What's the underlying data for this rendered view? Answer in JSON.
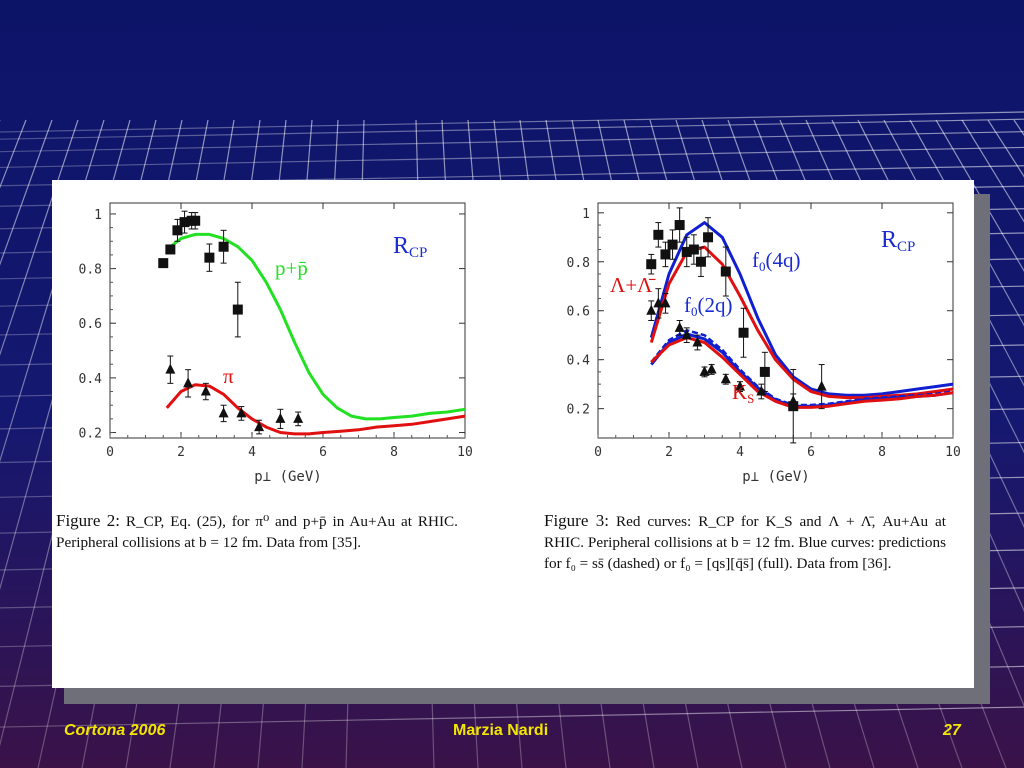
{
  "footer": {
    "left": "Cortona 2006",
    "center": "Marzia Nardi",
    "right": "27"
  },
  "colors": {
    "green_curve": "#22e022",
    "red_curve": "#e01010",
    "blue_curve": "#1020d0",
    "footer_text": "#f2e600",
    "label_blue": "#1a2bd0"
  },
  "chart_data": [
    {
      "type": "line",
      "title": "R",
      "title_sub": "CP",
      "xlabel": "p⊥ (GeV)",
      "xlim": [
        0,
        10
      ],
      "ylim": [
        0.18,
        1.04
      ],
      "xticks": [
        "0",
        "2",
        "4",
        "6",
        "8",
        "10"
      ],
      "yticks": [
        "0.2",
        "0.4",
        "0.6",
        "0.8",
        "1"
      ],
      "series": [
        {
          "name": "p+p̄",
          "style": "solid",
          "color": "#22e022",
          "x": [
            1.6,
            2.0,
            2.4,
            2.8,
            3.2,
            3.6,
            4.0,
            4.4,
            4.8,
            5.2,
            5.6,
            6.0,
            6.4,
            6.8,
            7.2,
            7.6,
            8.0,
            8.5,
            9.0,
            9.5,
            10.0
          ],
          "y": [
            0.87,
            0.91,
            0.925,
            0.925,
            0.91,
            0.88,
            0.83,
            0.75,
            0.65,
            0.53,
            0.42,
            0.34,
            0.29,
            0.26,
            0.25,
            0.25,
            0.255,
            0.26,
            0.27,
            0.275,
            0.285
          ]
        },
        {
          "name": "π",
          "style": "solid",
          "color": "#e01010",
          "x": [
            1.6,
            2.0,
            2.4,
            2.8,
            3.2,
            3.6,
            4.0,
            4.4,
            4.8,
            5.2,
            5.6,
            6.0,
            6.5,
            7.0,
            7.5,
            8.0,
            8.5,
            9.0,
            9.5,
            10.0
          ],
          "y": [
            0.29,
            0.35,
            0.375,
            0.37,
            0.34,
            0.29,
            0.25,
            0.22,
            0.2,
            0.195,
            0.195,
            0.2,
            0.205,
            0.21,
            0.22,
            0.225,
            0.23,
            0.24,
            0.25,
            0.26
          ]
        }
      ],
      "data_points": [
        {
          "marker": "square",
          "points": [
            [
              1.5,
              0.82
            ],
            [
              1.7,
              0.87
            ],
            [
              1.9,
              0.94
            ],
            [
              2.1,
              0.97
            ],
            [
              2.3,
              0.975
            ],
            [
              2.4,
              0.975
            ],
            [
              2.8,
              0.84
            ],
            [
              3.2,
              0.88
            ],
            [
              3.6,
              0.65
            ]
          ],
          "errors": [
            0.015,
            0.015,
            0.04,
            0.04,
            0.03,
            0.03,
            0.05,
            0.06,
            0.1
          ]
        },
        {
          "marker": "triangle",
          "points": [
            [
              1.7,
              0.43
            ],
            [
              2.2,
              0.38
            ],
            [
              2.7,
              0.35
            ],
            [
              3.2,
              0.27
            ],
            [
              3.7,
              0.27
            ],
            [
              4.2,
              0.22
            ],
            [
              4.8,
              0.25
            ],
            [
              5.3,
              0.25
            ]
          ],
          "errors": [
            0.05,
            0.05,
            0.03,
            0.03,
            0.025,
            0.025,
            0.035,
            0.025
          ]
        }
      ],
      "annotations": [
        "p+p̄",
        "π"
      ]
    },
    {
      "type": "line",
      "title": "R",
      "title_sub": "CP",
      "xlabel": "p⊥ (GeV)",
      "xlim": [
        0,
        10
      ],
      "ylim": [
        0.08,
        1.04
      ],
      "xticks": [
        "0",
        "2",
        "4",
        "6",
        "8",
        "10"
      ],
      "yticks": [
        "0.2",
        "0.4",
        "0.6",
        "0.8",
        "1"
      ],
      "series": [
        {
          "name": "f0(4q)",
          "style": "solid",
          "color": "#1020d0",
          "x": [
            1.5,
            2.0,
            2.5,
            3.0,
            3.5,
            4.0,
            4.5,
            5.0,
            5.5,
            6.0,
            6.5,
            7.0,
            7.5,
            8.0,
            8.5,
            9.0,
            9.5,
            10.0
          ],
          "y": [
            0.49,
            0.75,
            0.91,
            0.96,
            0.9,
            0.75,
            0.57,
            0.42,
            0.33,
            0.28,
            0.26,
            0.255,
            0.255,
            0.26,
            0.27,
            0.28,
            0.29,
            0.3
          ]
        },
        {
          "name": "Λ+Λ̄",
          "style": "solid",
          "color": "#e01010",
          "x": [
            1.5,
            2.0,
            2.5,
            3.0,
            3.5,
            4.0,
            4.5,
            5.0,
            5.5,
            6.0,
            6.5,
            7.0,
            7.5,
            8.0,
            8.5,
            9.0,
            9.5,
            10.0
          ],
          "y": [
            0.47,
            0.71,
            0.84,
            0.86,
            0.79,
            0.66,
            0.52,
            0.4,
            0.32,
            0.27,
            0.25,
            0.245,
            0.245,
            0.25,
            0.255,
            0.26,
            0.27,
            0.28
          ]
        },
        {
          "name": "f0(2q)",
          "style": "dashed",
          "color": "#1020d0",
          "x": [
            1.5,
            2.0,
            2.5,
            3.0,
            3.5,
            4.0,
            4.5,
            5.0,
            5.5,
            6.0,
            6.5,
            7.0,
            7.5,
            8.0,
            8.5,
            9.0,
            9.5,
            10.0
          ],
          "y": [
            0.39,
            0.48,
            0.52,
            0.5,
            0.44,
            0.36,
            0.29,
            0.24,
            0.215,
            0.215,
            0.22,
            0.23,
            0.24,
            0.245,
            0.25,
            0.255,
            0.26,
            0.27
          ]
        },
        {
          "name": "f0(2q)-full",
          "style": "solid",
          "color": "#1020d0",
          "x": [
            1.5,
            2.0,
            2.5,
            3.0,
            3.5,
            4.0,
            4.5,
            5.0,
            5.5,
            6.0,
            6.5,
            7.0,
            7.5,
            8.0,
            8.5,
            9.0,
            9.5,
            10.0
          ],
          "y": [
            0.38,
            0.47,
            0.505,
            0.485,
            0.43,
            0.35,
            0.285,
            0.235,
            0.21,
            0.21,
            0.215,
            0.225,
            0.235,
            0.24,
            0.245,
            0.25,
            0.255,
            0.265
          ]
        },
        {
          "name": "K_S",
          "style": "solid",
          "color": "#e01010",
          "x": [
            1.5,
            2.0,
            2.5,
            3.0,
            3.5,
            4.0,
            4.5,
            5.0,
            5.5,
            6.0,
            6.5,
            7.0,
            7.5,
            8.0,
            8.5,
            9.0,
            9.5,
            10.0
          ],
          "y": [
            0.39,
            0.46,
            0.49,
            0.47,
            0.41,
            0.34,
            0.27,
            0.23,
            0.205,
            0.205,
            0.21,
            0.22,
            0.23,
            0.235,
            0.24,
            0.25,
            0.255,
            0.265
          ]
        }
      ],
      "data_points": [
        {
          "marker": "square",
          "points": [
            [
              1.5,
              0.79
            ],
            [
              1.7,
              0.91
            ],
            [
              1.9,
              0.83
            ],
            [
              2.1,
              0.87
            ],
            [
              2.3,
              0.95
            ],
            [
              2.5,
              0.84
            ],
            [
              2.7,
              0.85
            ],
            [
              2.9,
              0.8
            ],
            [
              3.1,
              0.9
            ],
            [
              3.6,
              0.76
            ],
            [
              4.1,
              0.51
            ],
            [
              4.7,
              0.35
            ],
            [
              5.5,
              0.21
            ]
          ],
          "errors": [
            0.04,
            0.05,
            0.05,
            0.06,
            0.07,
            0.06,
            0.06,
            0.06,
            0.08,
            0.1,
            0.1,
            0.08,
            0.15
          ]
        },
        {
          "marker": "triangle",
          "points": [
            [
              1.5,
              0.6
            ],
            [
              1.7,
              0.63
            ],
            [
              1.9,
              0.63
            ],
            [
              2.3,
              0.53
            ],
            [
              2.5,
              0.5
            ],
            [
              2.8,
              0.47
            ],
            [
              3.0,
              0.35
            ],
            [
              3.2,
              0.36
            ],
            [
              3.6,
              0.32
            ],
            [
              4.0,
              0.29
            ],
            [
              4.6,
              0.27
            ],
            [
              5.5,
              0.23
            ],
            [
              6.3,
              0.29
            ]
          ],
          "errors": [
            0.04,
            0.06,
            0.04,
            0.03,
            0.03,
            0.03,
            0.02,
            0.02,
            0.02,
            0.02,
            0.03,
            0.03,
            0.09
          ]
        }
      ],
      "annotations": [
        "f0(4q)",
        "Λ+Λ̄",
        "f0(2q)",
        "K_S"
      ]
    }
  ],
  "captions": {
    "fig2": {
      "label": "Figure 2:",
      "text": " R_CP, Eq. (25), for π⁰ and p+p̄ in Au+Au at RHIC. Peripheral collisions at b = 12 fm. Data from [35]."
    },
    "fig3": {
      "label": "Figure 3:",
      "text": " Red curves: R_CP for K_S and Λ + Λ̄, Au+Au at RHIC. Peripheral collisions at b = 12 fm. Blue curves: predictions for f₀ = ss̄ (dashed) or f₀ = [qs][q̄s̄] (full). Data from [36]."
    }
  }
}
